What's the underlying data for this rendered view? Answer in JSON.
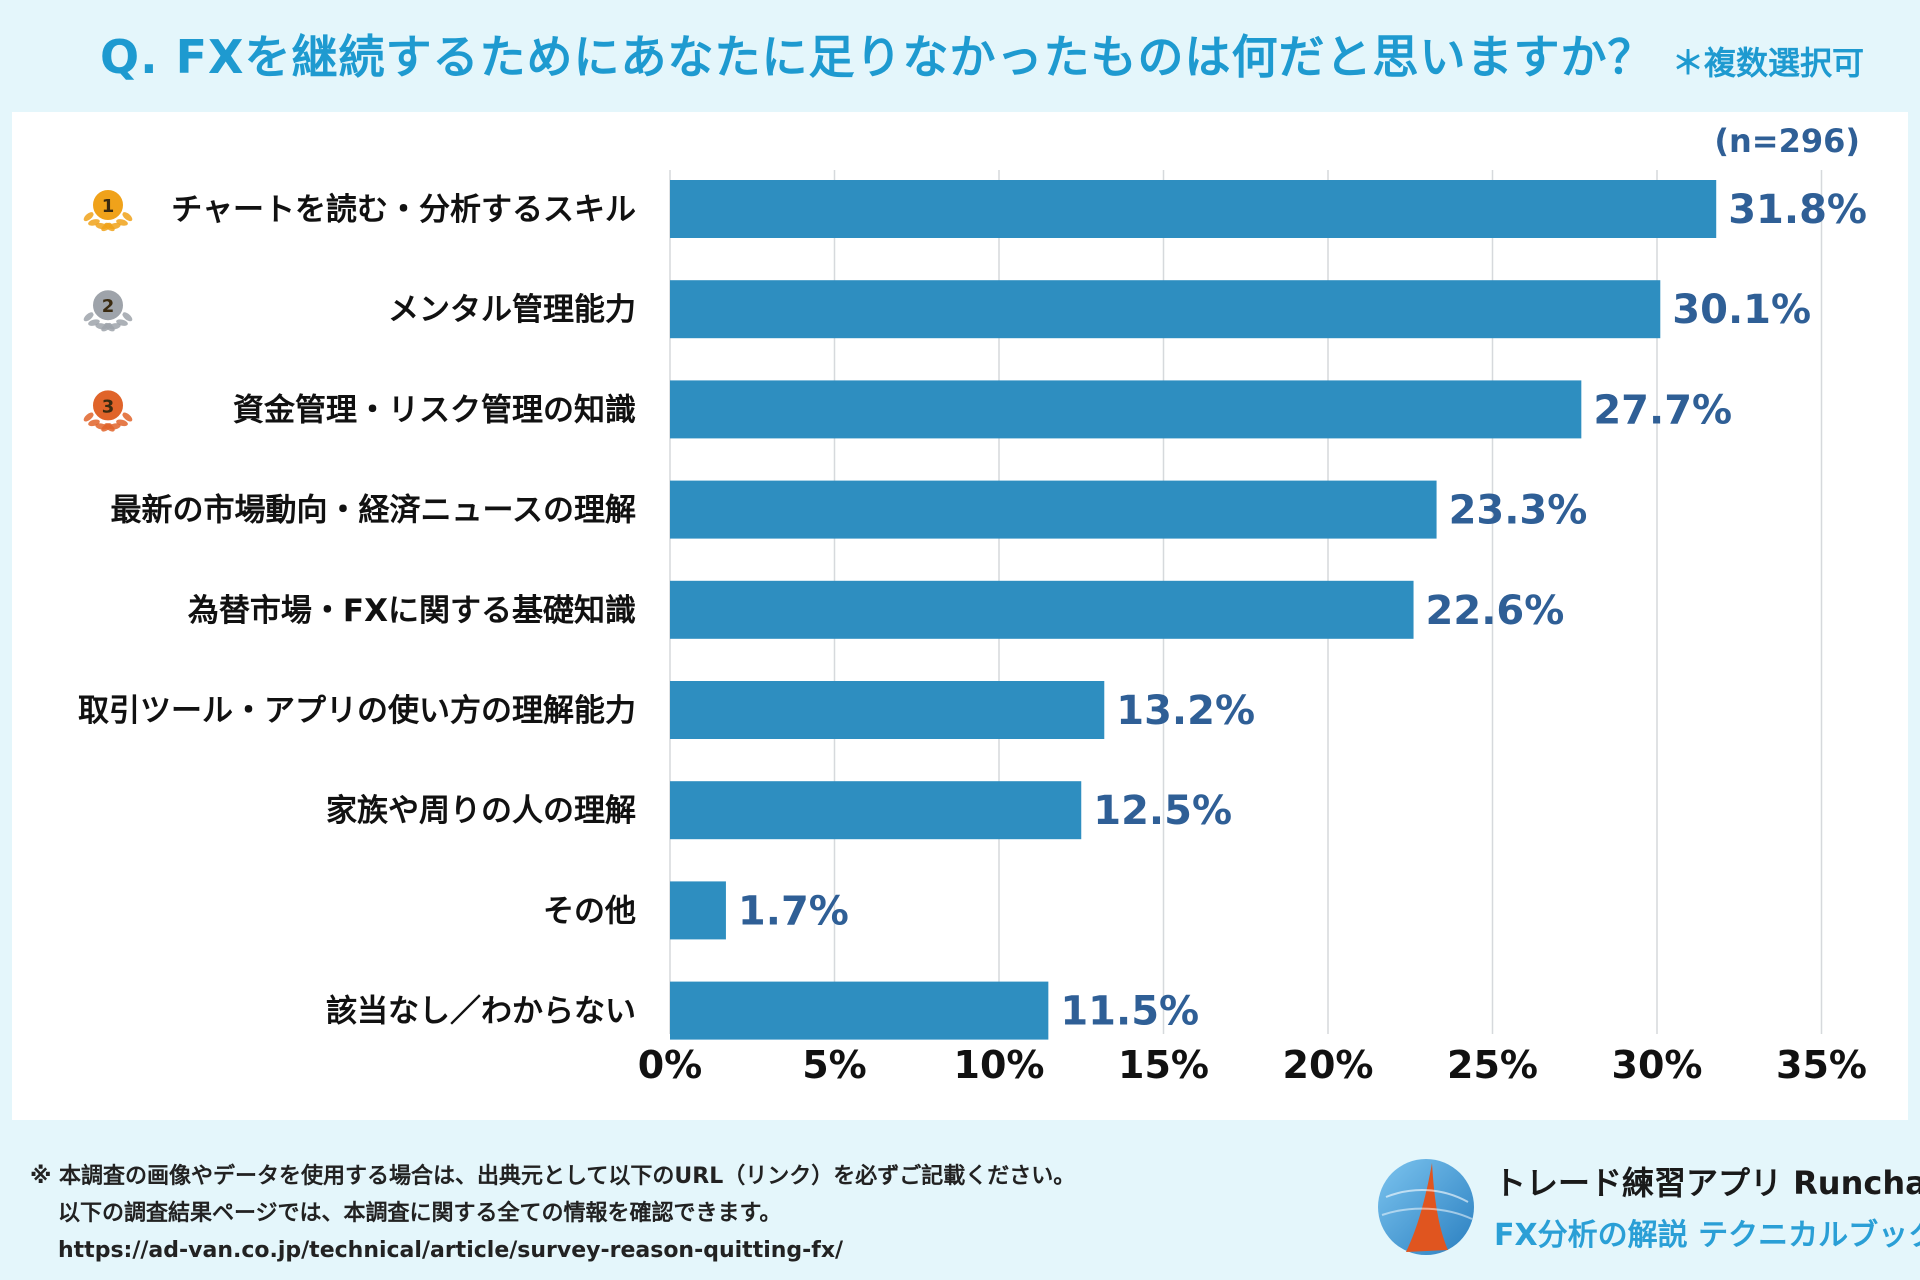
{
  "title": {
    "question": "Q. FXを継続するためにあなたに足りなかったものは何だと思いますか？",
    "note": "＊複数選択可"
  },
  "chart_data": {
    "type": "bar",
    "orientation": "horizontal",
    "sample_size": "(n=296)",
    "categories": [
      "チャートを読む・分析するスキル",
      "メンタル管理能力",
      "資金管理・リスク管理の知識",
      "最新の市場動向・経済ニュースの理解",
      "為替市場・FXに関する基礎知識",
      "取引ツール・アプリの使い方の理解能力",
      "家族や周りの人の理解",
      "その他",
      "該当なし／わからない"
    ],
    "values": [
      31.8,
      30.1,
      27.7,
      23.3,
      22.6,
      13.2,
      12.5,
      1.7,
      11.5
    ],
    "value_labels": [
      "31.8%",
      "30.1%",
      "27.7%",
      "23.3%",
      "22.6%",
      "13.2%",
      "12.5%",
      "1.7%",
      "11.5%"
    ],
    "rank_badges": [
      "1",
      "2",
      "3"
    ],
    "xlim": [
      0,
      35
    ],
    "xticks": [
      0,
      5,
      10,
      15,
      20,
      25,
      30,
      35
    ],
    "xtick_labels": [
      "0%",
      "5%",
      "10%",
      "15%",
      "20%",
      "25%",
      "30%",
      "35%"
    ],
    "grid": true,
    "bar_color": "#2e8ec0",
    "label_color": "#2f5f96",
    "badge_colors": [
      "#f0a21a",
      "#9ea3aa",
      "#e0642a"
    ]
  },
  "footer": {
    "line1": "※ 本調査の画像やデータを使用する場合は、出典元として以下のURL（リンク）を必ずご記載ください。",
    "line2": "以下の調査結果ページでは、本調査に関する全ての情報を確認できます。",
    "url": "https://ad-van.co.jp/technical/article/survey-reason-quitting-fx/"
  },
  "brand": {
    "name": "トレード練習アプリ  Runcha",
    "sub": "FX分析の解説  テクニカルブック"
  }
}
